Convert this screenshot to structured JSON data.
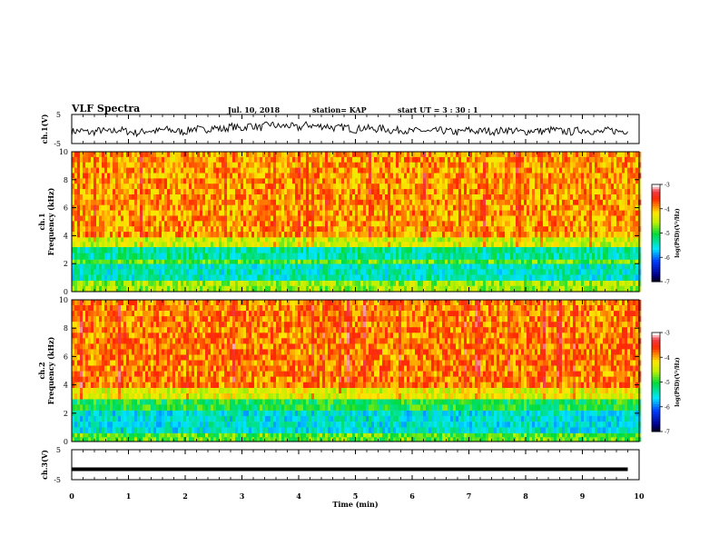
{
  "header": {
    "title": "VLF Spectra",
    "date": "Jul. 10, 2018",
    "station": "station= KAP",
    "start": "start UT =  3 : 30 : 1"
  },
  "colorbar_label": "log(PSD)(V²/Hz)",
  "chart_data": [
    {
      "type": "line",
      "ylabel": "ch.1(V)",
      "ylim": [
        -5,
        5
      ],
      "yticks": [
        -5,
        5
      ],
      "series": [
        {
          "values": [
            -0.9,
            -0.6,
            -1.3,
            -0.4,
            -1.1,
            -0.2,
            -0.9,
            -1.4,
            -0.5,
            -0.8,
            -0.1,
            -0.7,
            -1.0,
            0.3,
            -0.5,
            0.6,
            -0.2,
            0.9,
            0.1,
            1.4,
            0.4,
            1.7,
            0.8,
            1.2,
            0.3,
            1.5,
            0.9,
            1.1,
            0.2,
            0.7,
            -0.3,
            0.5,
            -0.1,
            0.2,
            -0.6,
            -0.2,
            -0.9,
            -0.4,
            -1.1,
            -0.5,
            -0.8,
            -1.2,
            -0.3,
            -0.9,
            -0.5,
            -1.0,
            -0.2,
            -0.7,
            -1.1,
            -0.4,
            -0.9,
            -0.2,
            -0.8,
            -1.0,
            -0.3,
            -0.6,
            -1.2,
            -0.4,
            -0.8,
            -0.5
          ]
        }
      ],
      "x_range_min": [
        0,
        9.8
      ],
      "color": "#000000"
    },
    {
      "type": "heatmap",
      "ylabel": "ch.1\nFrequency (kHz)",
      "yticks": [
        0,
        2,
        4,
        6,
        8,
        10
      ],
      "ylim": [
        0,
        10
      ],
      "color_scale": {
        "min": -7,
        "max": -3,
        "ticks": [
          -3,
          -4,
          -5,
          -6,
          -7
        ]
      },
      "bands": [
        {
          "from_khz": 0.0,
          "to_khz": 0.8,
          "log_psd": -4.6
        },
        {
          "from_khz": 0.8,
          "to_khz": 2.0,
          "log_psd": -5.4
        },
        {
          "from_khz": 2.0,
          "to_khz": 2.3,
          "log_psd": -4.8
        },
        {
          "from_khz": 2.3,
          "to_khz": 3.2,
          "log_psd": -5.3
        },
        {
          "from_khz": 3.2,
          "to_khz": 3.9,
          "log_psd": -4.4
        },
        {
          "from_khz": 3.9,
          "to_khz": 10.0,
          "log_psd": -3.9
        }
      ]
    },
    {
      "type": "heatmap",
      "ylabel": "ch.2\nFrequency (kHz)",
      "yticks": [
        0,
        2,
        4,
        6,
        8,
        10
      ],
      "ylim": [
        0,
        10
      ],
      "color_scale": {
        "min": -7,
        "max": -3,
        "ticks": [
          -3,
          -4,
          -5,
          -6,
          -7
        ]
      },
      "bands": [
        {
          "from_khz": 0.0,
          "to_khz": 0.6,
          "log_psd": -4.8
        },
        {
          "from_khz": 0.6,
          "to_khz": 2.2,
          "log_psd": -5.5
        },
        {
          "from_khz": 2.2,
          "to_khz": 3.0,
          "log_psd": -5.0
        },
        {
          "from_khz": 3.0,
          "to_khz": 3.8,
          "log_psd": -4.3
        },
        {
          "from_khz": 3.8,
          "to_khz": 10.0,
          "log_psd": -3.8
        }
      ]
    },
    {
      "type": "line",
      "ylabel": "ch.3(V)",
      "ylim": [
        -5,
        5
      ],
      "yticks": [
        -5,
        5
      ],
      "series": [
        {
          "values": [
            -1.5,
            -1.5
          ]
        }
      ],
      "x_range_min": [
        0,
        9.8
      ],
      "color": "#000000"
    }
  ],
  "x_axis": {
    "label": "Time (min)",
    "ticks": [
      0,
      1,
      2,
      3,
      4,
      5,
      6,
      7,
      8,
      9,
      10
    ],
    "range": [
      0,
      10
    ]
  }
}
